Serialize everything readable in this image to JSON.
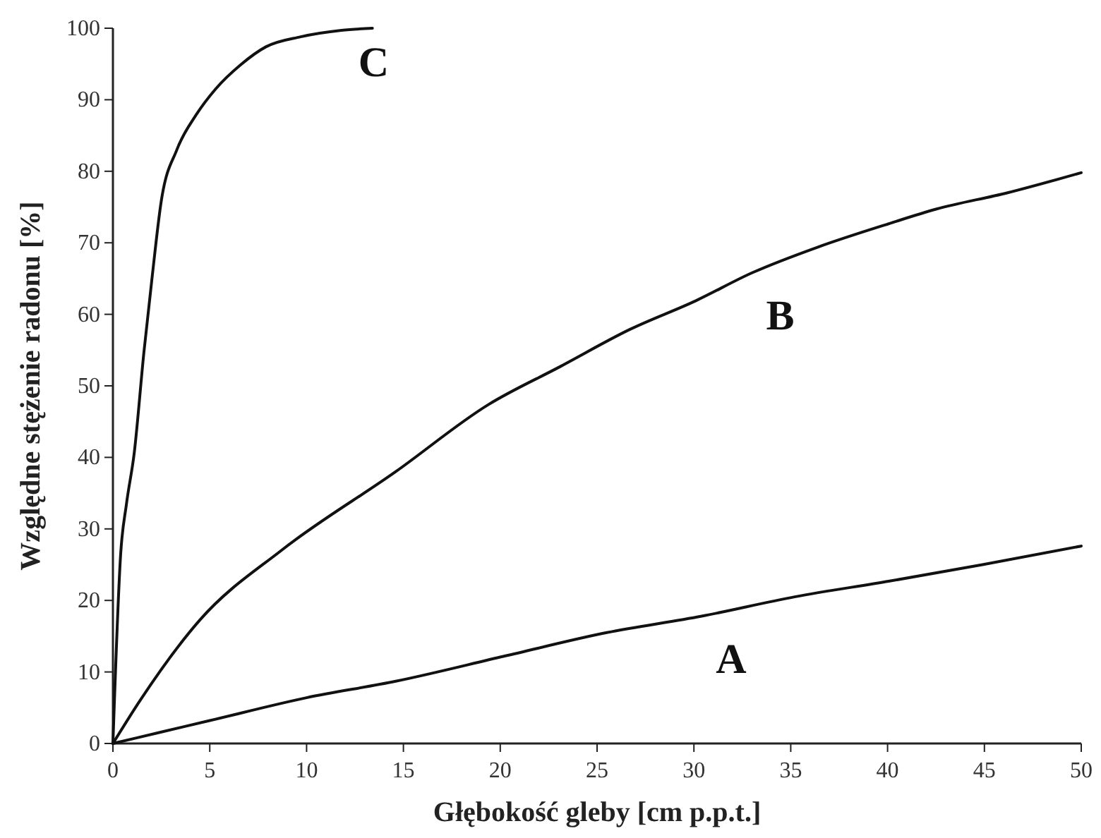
{
  "chart_data": {
    "type": "line",
    "xlabel": "Głębokość gleby [cm p.p.t.]",
    "ylabel": "Względne stężenie radonu [%]",
    "xlim": [
      0,
      50
    ],
    "ylim": [
      0,
      100
    ],
    "xticks": [
      0,
      5,
      10,
      15,
      20,
      25,
      30,
      35,
      40,
      45,
      50
    ],
    "yticks": [
      0,
      10,
      20,
      30,
      40,
      50,
      60,
      70,
      80,
      90,
      100
    ],
    "grid": false,
    "marker": "none",
    "line_style": "solid",
    "series": [
      {
        "name": "A",
        "color": "#111111",
        "x": [
          0,
          2.5,
          5,
          10,
          14.6,
          20.2,
          25.5,
          30.4,
          35.2,
          40.1,
          44.9,
          50
        ],
        "values": [
          0,
          1.6,
          3.2,
          6.4,
          8.7,
          12.2,
          15.5,
          17.8,
          20.5,
          22.7,
          25,
          27.6
        ]
      },
      {
        "name": "B",
        "color": "#111111",
        "x": [
          0,
          1.4,
          4.5,
          8.7,
          14.6,
          19.4,
          23.1,
          26.7,
          30.1,
          33,
          36.4,
          40.1,
          42.5,
          46.2,
          50
        ],
        "values": [
          0,
          6,
          17.3,
          27,
          38,
          47.4,
          52.7,
          57.9,
          61.9,
          65.8,
          69.4,
          72.7,
          74.7,
          77,
          79.8
        ]
      },
      {
        "name": "C",
        "color": "#111111",
        "x": [
          0,
          0.4,
          0.7,
          1.1,
          1.6,
          2,
          2.5,
          3.3,
          4.3,
          5.3,
          6.6,
          7.9,
          9.7,
          11.8,
          13.4
        ],
        "values": [
          0,
          26.5,
          33.5,
          40.6,
          54.7,
          64.6,
          75.9,
          83,
          87.9,
          91.5,
          94.9,
          97.4,
          98.8,
          99.7,
          100
        ]
      }
    ]
  }
}
